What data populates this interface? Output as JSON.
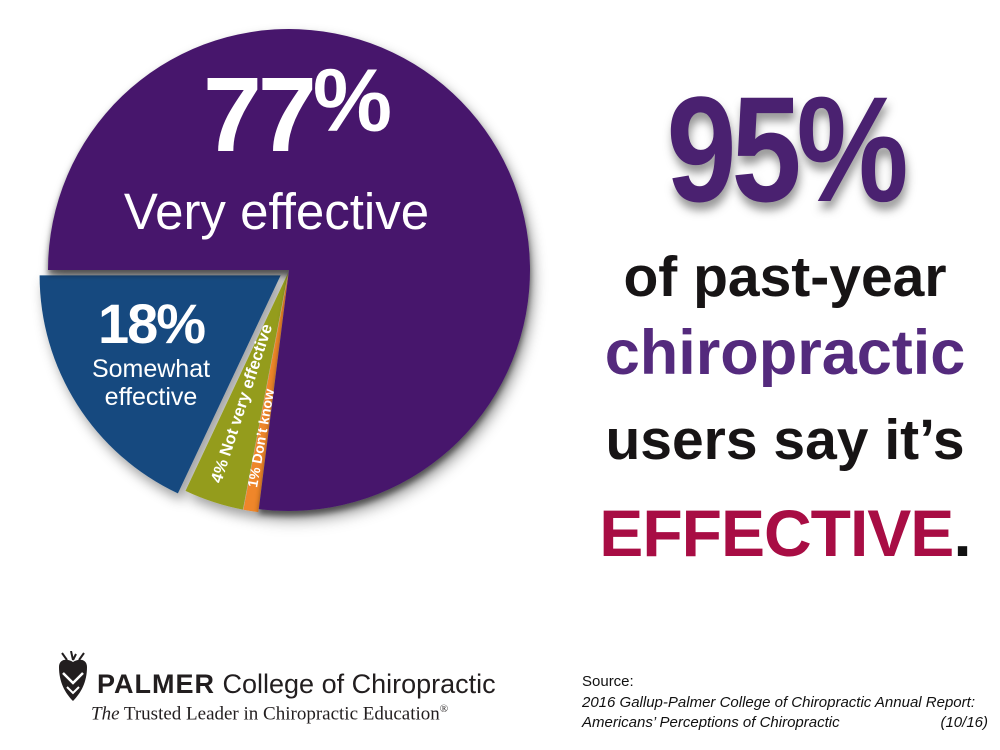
{
  "chart_data": {
    "type": "pie",
    "title": "",
    "unit": "percent",
    "total": 100,
    "legend_position": "labels inside slices",
    "slices": [
      {
        "label": "Very effective",
        "value": 77,
        "pct_num": "77",
        "pct_sign": "%",
        "color": "#46186c",
        "text_color": "#ffffff",
        "exploded": false
      },
      {
        "label": "Somewhat effective",
        "value": 18,
        "pct_text": "18%",
        "label_lines": [
          "Somewhat",
          "effective"
        ],
        "color": "#164a7f",
        "text_color": "#ffffff",
        "exploded": true
      },
      {
        "label": "Not very effective",
        "value": 4,
        "slice_text": "4% Not very effective",
        "color": "#949c1f",
        "text_color": "#ffffff",
        "exploded": false
      },
      {
        "label": "Don’t know",
        "value": 1,
        "slice_text": "1% Don’t know",
        "color": "#ef8629",
        "text_color": "#ffffff",
        "exploded": false
      }
    ]
  },
  "headline": {
    "stat": "95%",
    "line1": "of past-year",
    "line2": "chiropractic",
    "line3": "users say it’s",
    "line4_word": "EFFECTIVE",
    "line4_period": "."
  },
  "footer": {
    "brand_bold": "PALMER",
    "brand_rest": " College of Chiropractic",
    "tagline_lead": "The",
    "tagline_rest": " Trusted Leader in Chiropractic Education",
    "tagline_mark": "®",
    "source_label": "Source:",
    "source_line1": "2016 Gallup-Palmer College of Chiropractic Annual Report:",
    "source_line2": "Americans’ Perceptions of Chiropractic",
    "source_date": "(10/16)"
  },
  "colors": {
    "pie_purple": "#46186c",
    "pie_blue": "#164a7f",
    "pie_olive": "#949c1f",
    "pie_orange": "#ef8629",
    "stat_purple": "#4a2170",
    "word_purple": "#542a7d",
    "effective_red": "#a80d44",
    "text_black": "#171415",
    "background": "#ffffff"
  }
}
